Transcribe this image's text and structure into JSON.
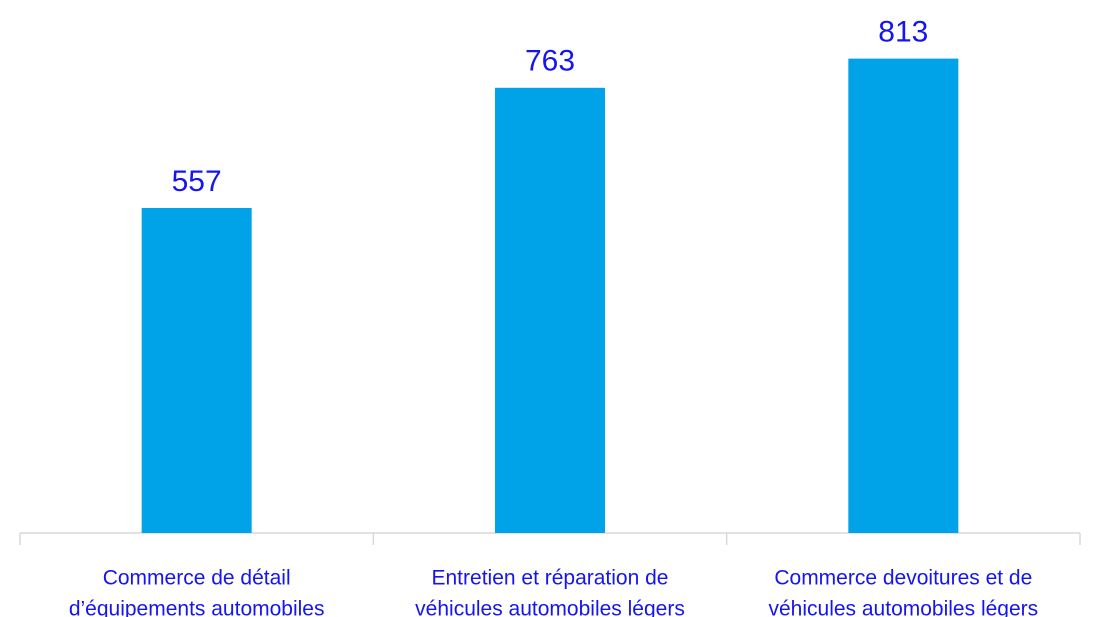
{
  "chart_data": {
    "type": "bar",
    "categories": [
      [
        "Commerce de détail",
        "d’équipements automobiles"
      ],
      [
        "Entretien et réparation de",
        "véhicules automobiles légers"
      ],
      [
        "Commerce devoitures et de",
        "véhicules automobiles légers"
      ]
    ],
    "values": [
      557,
      763,
      813
    ],
    "color": "#00a2e8",
    "label_color": "#1515f0"
  }
}
